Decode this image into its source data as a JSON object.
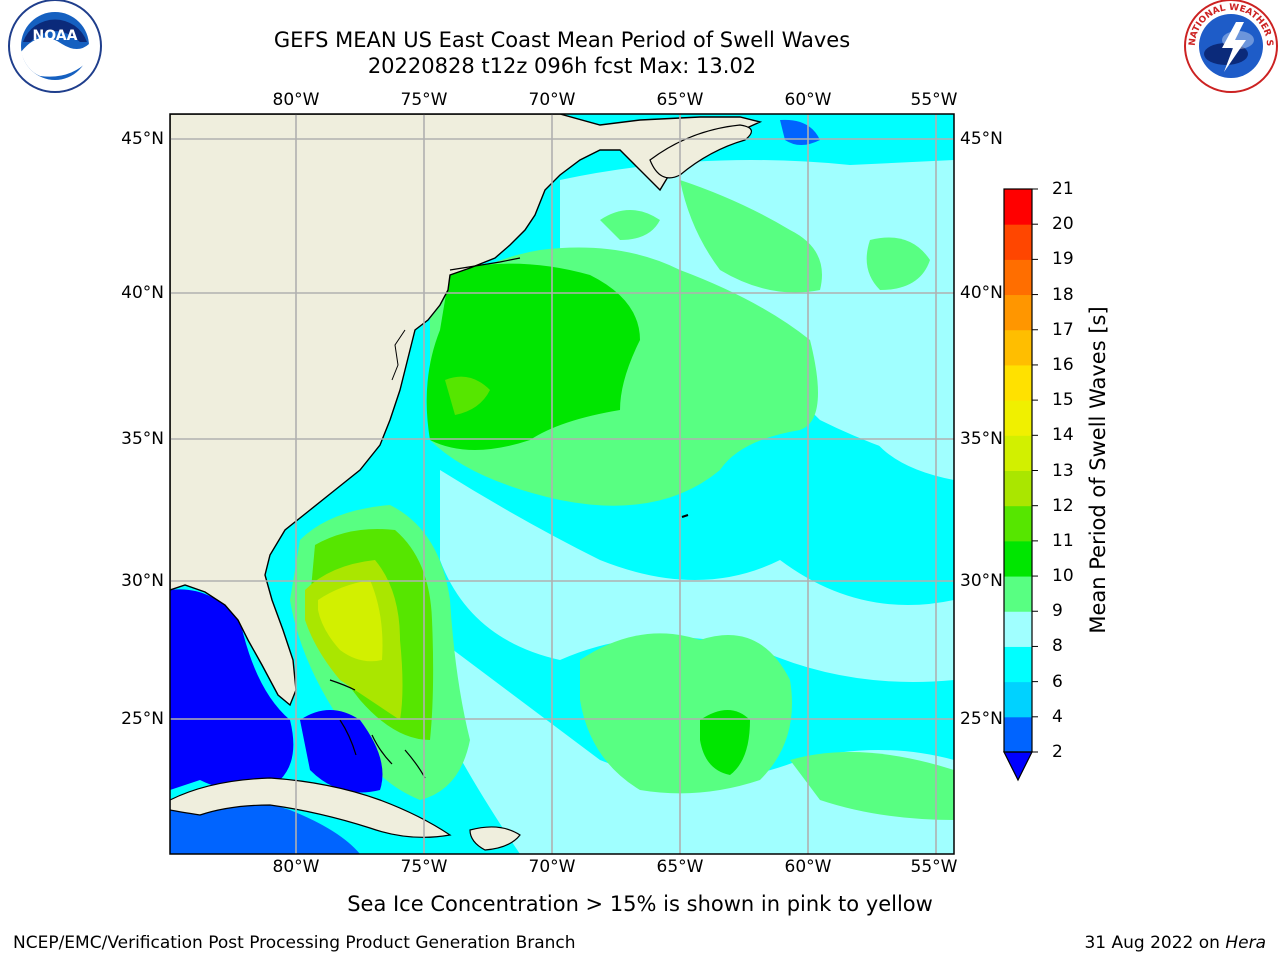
{
  "title": {
    "line1": "GEFS MEAN US East Coast Mean Period of Swell Waves",
    "line2": "20220828 t12z 096h fcst   Max: 13.02"
  },
  "map": {
    "lon_labels": [
      "80°W",
      "75°W",
      "70°W",
      "65°W",
      "60°W",
      "55°W"
    ],
    "lat_labels": [
      "45°N",
      "40°N",
      "35°N",
      "30°N",
      "25°N"
    ],
    "land_color": "#efeedd",
    "grid_color": "#b0b0b0"
  },
  "colorbar": {
    "label": "Mean Period of Swell Waves [s]",
    "ticks": [
      "2",
      "4",
      "6",
      "8",
      "9",
      "10",
      "11",
      "12",
      "13",
      "14",
      "15",
      "16",
      "17",
      "18",
      "19",
      "20",
      "21"
    ],
    "colors": [
      "#0064ff",
      "#00d2ff",
      "#00ffff",
      "#a0ffff",
      "#58ff82",
      "#00e600",
      "#56e600",
      "#aae600",
      "#d2f000",
      "#f0f000",
      "#ffe100",
      "#ffbe00",
      "#ff9600",
      "#ff6e00",
      "#ff4600",
      "#ff0000"
    ],
    "under_color": "#0000ff"
  },
  "subtitle": "Sea Ice Concentration > 15% is shown in pink to yellow",
  "footer": {
    "left": "NCEP/EMC/Verification Post Processing Product Generation Branch",
    "right_date": "31 Aug 2022 on ",
    "right_host": "Hera"
  },
  "logos": {
    "noaa_text": "NOAA",
    "nws_text": "NATIONAL WEATHER SERVICE"
  }
}
